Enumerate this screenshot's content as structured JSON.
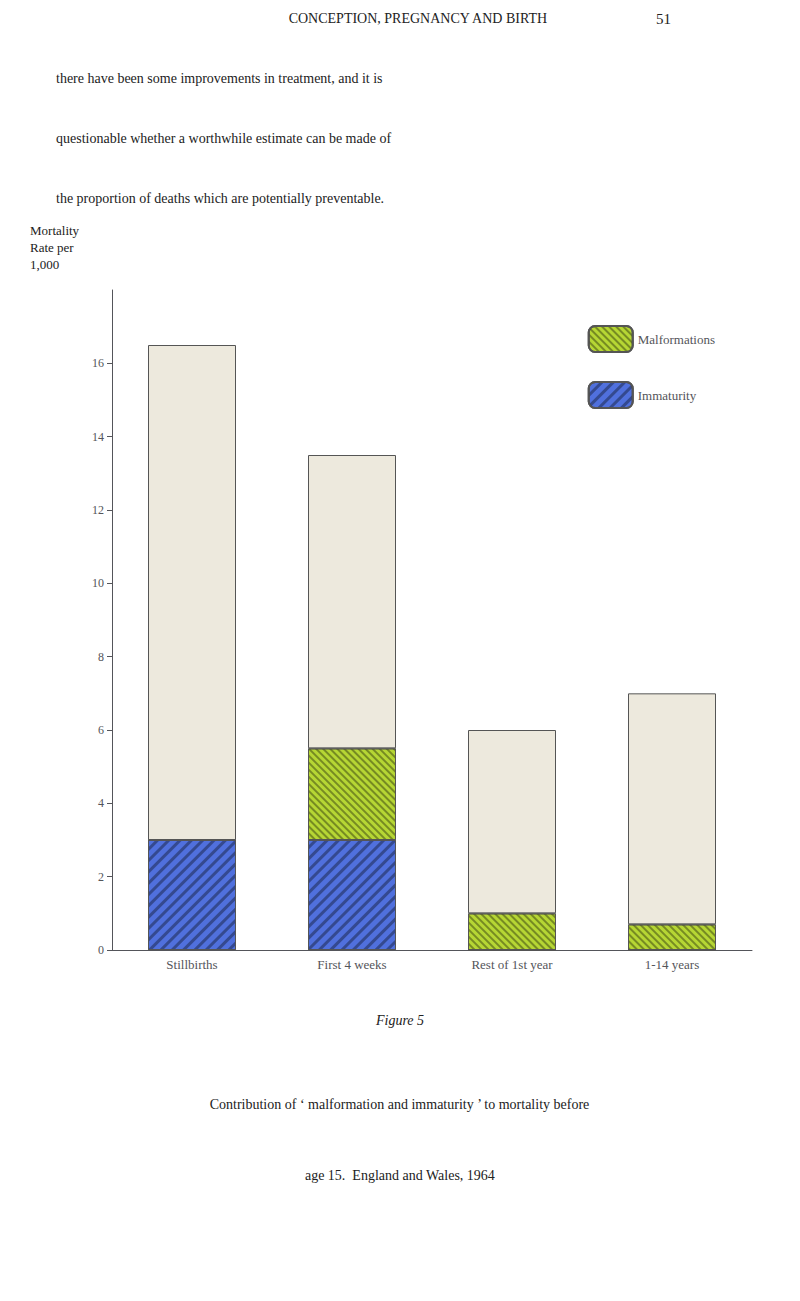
{
  "chart_data": {
    "type": "bar",
    "stacked": true,
    "grid": false,
    "legend": "upper right",
    "header": [
      "CONCEPTION, PREGNANCY AND BIRTH",
      "51"
    ],
    "body_text": [
      "there have been some improvements in treatment, and it is",
      "questionable whether a worthwhile estimate can be made of",
      "the proportion of deaths which are potentially preventable."
    ],
    "ylabel": [
      "Mortality",
      "Rate per",
      "1,000"
    ],
    "categories": [
      "Stillbirths",
      "First 4 weeks",
      "Rest of 1st year",
      "1-14 years"
    ],
    "series": [
      {
        "name": "Immaturity",
        "values": [
          3.0,
          3.0,
          0.0,
          0.0
        ]
      },
      {
        "name": "Malformations",
        "values": [
          0.0,
          2.5,
          1.0,
          0.7
        ]
      },
      {
        "color": "#ede9dd",
        "values": [
          13.5,
          8.0,
          5.0,
          6.3
        ]
      }
    ],
    "ylim": [
      0,
      18
    ],
    "yticks": [
      0,
      2,
      4,
      6,
      8,
      10,
      12,
      14,
      16
    ],
    "figure_label": "Figure 5",
    "caption": [
      "Contribution of ‘ malformation and immaturity ’ to mortality before",
      "age 15.  England and Wales, 1964"
    ]
  }
}
